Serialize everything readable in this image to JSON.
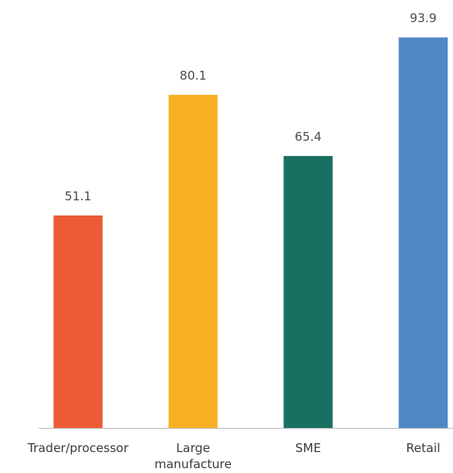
{
  "chart_data": {
    "type": "bar",
    "categories": [
      "Trader/processor",
      "Large manufacture",
      "SME",
      "Retail"
    ],
    "category_lines": [
      [
        "Trader/processor"
      ],
      [
        "Large",
        "manufacture"
      ],
      [
        "SME"
      ],
      [
        "Retail"
      ]
    ],
    "values": [
      51.1,
      80.1,
      65.4,
      93.9
    ],
    "value_labels": [
      "51.1",
      "80.1",
      "65.4",
      "93.9"
    ],
    "colors": [
      "#ec5b36",
      "#f8b025",
      "#1a6f63",
      "#4f86c6"
    ],
    "title": "",
    "xlabel": "",
    "ylabel": "",
    "ylim": [
      0,
      100
    ],
    "grid": false,
    "legend": "none"
  }
}
